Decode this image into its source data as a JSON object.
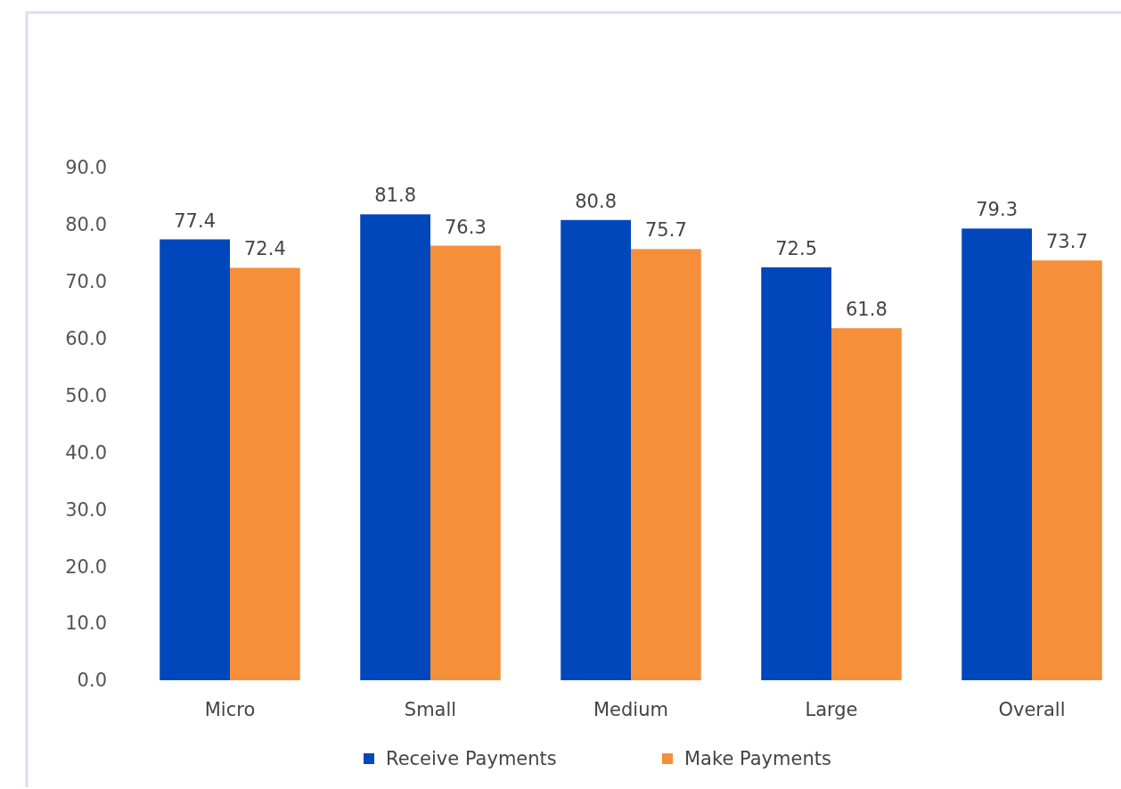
{
  "chart_data": {
    "type": "bar",
    "categories": [
      "Micro",
      "Small",
      "Medium",
      "Large",
      "Overall"
    ],
    "series": [
      {
        "name": "Receive Payments",
        "color": "#0047bb",
        "values": [
          77.4,
          81.8,
          80.8,
          72.5,
          79.3
        ]
      },
      {
        "name": "Make Payments",
        "color": "#f58f3a",
        "values": [
          72.4,
          76.3,
          75.7,
          61.8,
          73.7
        ]
      }
    ],
    "ylim": [
      0,
      90
    ],
    "yticks": [
      {
        "value": 0,
        "label": "0.0"
      },
      {
        "value": 10,
        "label": "10.0"
      },
      {
        "value": 20,
        "label": "20.0"
      },
      {
        "value": 30,
        "label": "30.0"
      },
      {
        "value": 40,
        "label": "40.0"
      },
      {
        "value": 50,
        "label": "50.0"
      },
      {
        "value": 60,
        "label": "60.0"
      },
      {
        "value": 70,
        "label": "70.0"
      },
      {
        "value": 80,
        "label": "80.0"
      },
      {
        "value": 90,
        "label": "90.0"
      }
    ],
    "data_labels": true,
    "grid": false,
    "legend": "bottom"
  }
}
